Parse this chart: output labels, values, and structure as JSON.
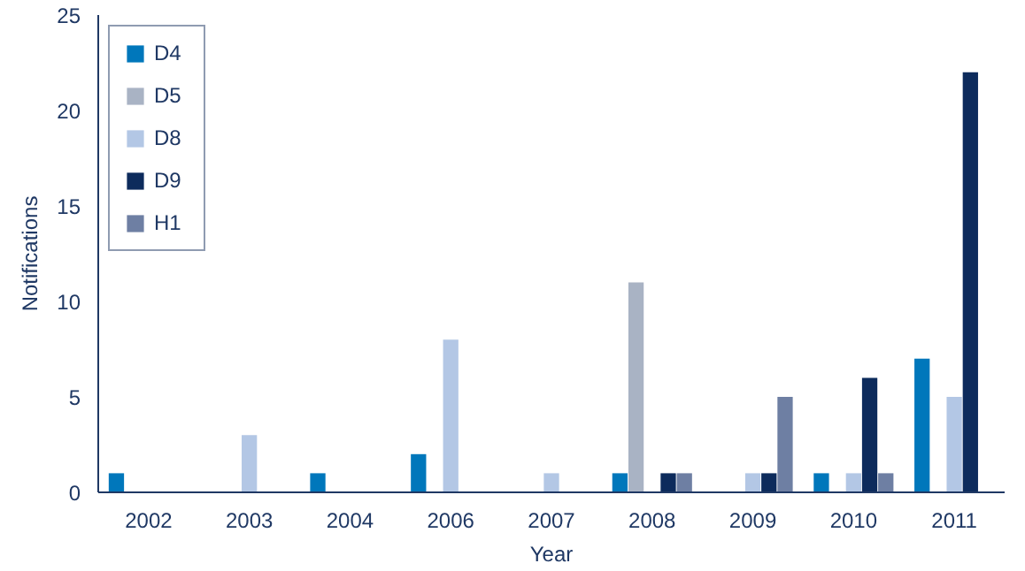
{
  "chart_data": {
    "type": "bar",
    "xlabel": "Year",
    "ylabel": "Notifications",
    "categories": [
      "2002",
      "2003",
      "2004",
      "2006",
      "2007",
      "2008",
      "2009",
      "2010",
      "2011"
    ],
    "series": [
      {
        "name": "D4",
        "color": "#0077bb",
        "values": [
          1,
          0,
          1,
          2,
          0,
          1,
          0,
          1,
          7
        ]
      },
      {
        "name": "D5",
        "color": "#a9b3c4",
        "values": [
          0,
          0,
          0,
          0,
          0,
          11,
          0,
          0,
          0
        ]
      },
      {
        "name": "D8",
        "color": "#b3c7e5",
        "values": [
          0,
          3,
          0,
          8,
          1,
          0,
          1,
          1,
          5
        ]
      },
      {
        "name": "D9",
        "color": "#0d2b5c",
        "values": [
          0,
          0,
          0,
          0,
          0,
          1,
          1,
          6,
          22
        ]
      },
      {
        "name": "H1",
        "color": "#6e7fa3",
        "values": [
          0,
          0,
          0,
          0,
          0,
          1,
          5,
          1,
          0
        ]
      }
    ],
    "ylim": [
      0,
      25
    ],
    "yticks": [
      0,
      5,
      10,
      15,
      20,
      25
    ],
    "grid": false,
    "legend": "top left"
  }
}
